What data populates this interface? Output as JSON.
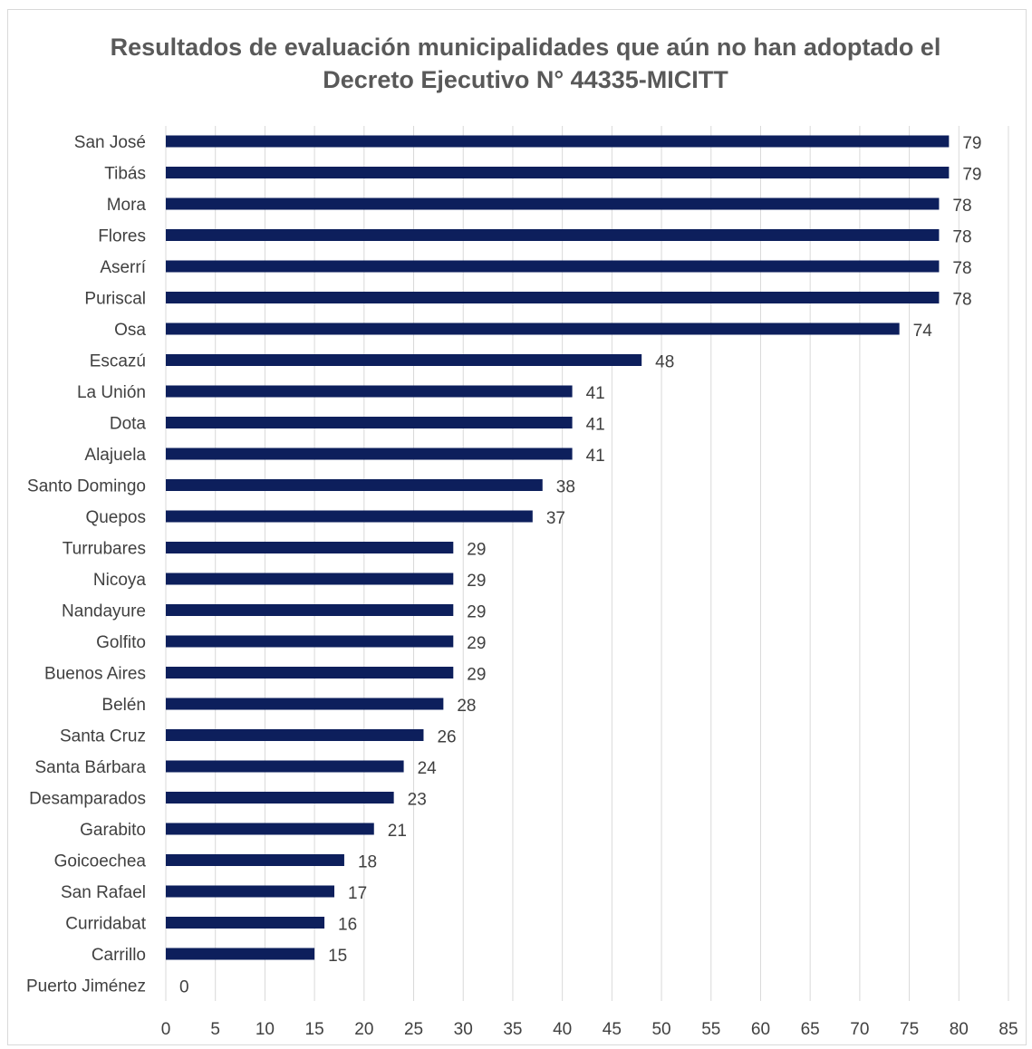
{
  "chart_data": {
    "type": "bar",
    "orientation": "horizontal",
    "title_lines": [
      "Resultados de evaluación municipalidades que aún no han adoptado el",
      "Decreto Ejecutivo N° 44335-MICITT"
    ],
    "categories": [
      "San José",
      "Tibás",
      "Mora",
      "Flores",
      "Aserrí",
      "Puriscal",
      "Osa",
      "Escazú",
      "La Unión",
      "Dota",
      "Alajuela",
      "Santo Domingo",
      "Quepos",
      "Turrubares",
      "Nicoya",
      "Nandayure",
      "Golfito",
      "Buenos Aires",
      "Belén",
      "Santa Cruz",
      "Santa Bárbara",
      "Desamparados",
      "Garabito",
      "Goicoechea",
      "San Rafael",
      "Curridabat",
      "Carrillo",
      "Puerto Jiménez"
    ],
    "values": [
      79,
      79,
      78,
      78,
      78,
      78,
      74,
      48,
      41,
      41,
      41,
      38,
      37,
      29,
      29,
      29,
      29,
      29,
      28,
      26,
      24,
      23,
      21,
      18,
      17,
      16,
      15,
      0
    ],
    "xlim": [
      0,
      85
    ],
    "xticks": [
      0,
      5,
      10,
      15,
      20,
      25,
      30,
      35,
      40,
      45,
      50,
      55,
      60,
      65,
      70,
      75,
      80,
      85
    ],
    "grid": true,
    "bar_color": "#0d1f5c",
    "grid_color": "#d9d9d9"
  }
}
